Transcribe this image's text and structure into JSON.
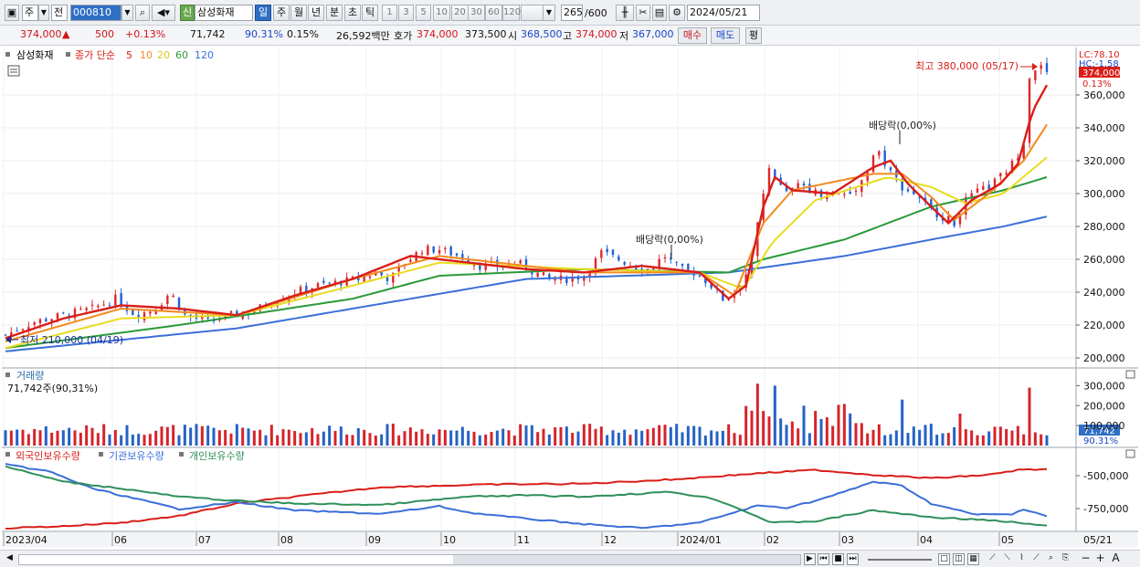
{
  "toolbar": {
    "period_prefix": "주",
    "period_prefix2": "전",
    "code": "000810",
    "new_badge": "신",
    "stock_name": "삼성화재",
    "periods": [
      "일",
      "주",
      "월",
      "년",
      "분",
      "초",
      "틱"
    ],
    "active_period": "일",
    "intervals": [
      "1",
      "3",
      "5",
      "10",
      "20",
      "30",
      "60",
      "120"
    ],
    "count": "265",
    "count_total": "/600",
    "date": "2024/05/21"
  },
  "quote": {
    "price": "374,000",
    "change_arrow": "▲",
    "change": "500",
    "change_pct": "+0.13%",
    "volume": "71,742",
    "volume_ratio": "90.31%",
    "turnover": "0.15%",
    "amount": "26,592백만",
    "ask_label": "호가",
    "ask": "374,000",
    "bid": "373,500",
    "open_label": "시",
    "open": "368,500",
    "high_label": "고",
    "high": "374,000",
    "low_label": "저",
    "low": "367,000",
    "buy_label": "매수",
    "sell_label": "매도",
    "avg_label": "평"
  },
  "price_panel": {
    "stock": "삼성화재",
    "ma_label": "종가 단순",
    "ma_periods": [
      "5",
      "10",
      "20",
      "60",
      "120"
    ],
    "ma_colors": [
      "#d91e18",
      "#f28a1c",
      "#e8dc20",
      "#2a9a3a",
      "#3a6fd8"
    ],
    "lc": "LC:78.10",
    "hc": "HC:-1.58",
    "last_price": "374,000",
    "last_pct": "0.13%",
    "y_ticks": [
      "360,000",
      "340,000",
      "320,000",
      "300,000",
      "280,000",
      "260,000",
      "240,000",
      "220,000",
      "200,000"
    ],
    "high_note": "최고 380,000 (05/17)",
    "low_note": "최저 210,000 (04/19)",
    "dividend_notes": [
      "배당락(0,00%)",
      "배당락(0,00%)"
    ]
  },
  "volume_panel": {
    "title": "거래량",
    "value": "71,742주(90,31%)",
    "y_ticks": [
      "300,000",
      "200,000",
      "100,000"
    ],
    "last": "71,742",
    "last_pct": "90.31%"
  },
  "holding_panel": {
    "series": [
      "외국인보유수량",
      "기관보유수량",
      "개인보유수량"
    ],
    "colors": [
      "#d91e18",
      "#3a6fd8",
      "#2f8f5a"
    ],
    "y_ticks": [
      "-500,000",
      "-750,000"
    ]
  },
  "x_axis": {
    "labels": [
      "2023/04",
      "06",
      "07",
      "08",
      "09",
      "10",
      "11",
      "12",
      "2024/01",
      "02",
      "03",
      "04",
      "05"
    ],
    "right_label": "05/21"
  },
  "chart_data": {
    "type": "candlestick",
    "period": "daily",
    "x_range": [
      "2023/04",
      "2024/05/21"
    ],
    "y_range": [
      200000,
      380000
    ],
    "close_path": [
      [
        0,
        214000
      ],
      [
        10,
        222000
      ],
      [
        20,
        226000
      ],
      [
        30,
        230000
      ],
      [
        38,
        236000
      ],
      [
        45,
        226000
      ],
      [
        52,
        230000
      ],
      [
        57,
        240000
      ],
      [
        62,
        226000
      ],
      [
        70,
        222000
      ],
      [
        78,
        226000
      ],
      [
        85,
        228000
      ],
      [
        92,
        234000
      ],
      [
        100,
        240000
      ],
      [
        108,
        244000
      ],
      [
        115,
        246000
      ],
      [
        122,
        248000
      ],
      [
        128,
        252000
      ],
      [
        133,
        248000
      ],
      [
        138,
        258000
      ],
      [
        144,
        266000
      ],
      [
        150,
        266000
      ],
      [
        157,
        262000
      ],
      [
        164,
        256000
      ],
      [
        170,
        256000
      ],
      [
        177,
        258000
      ],
      [
        183,
        252000
      ],
      [
        188,
        248000
      ],
      [
        194,
        248000
      ],
      [
        200,
        250000
      ],
      [
        206,
        264000
      ],
      [
        212,
        260000
      ],
      [
        217,
        256000
      ],
      [
        222,
        254000
      ],
      [
        228,
        262000
      ],
      [
        233,
        254000
      ],
      [
        238,
        252000
      ],
      [
        243,
        246000
      ],
      [
        248,
        236000
      ],
      [
        252,
        240000
      ],
      [
        257,
        254000
      ],
      [
        261,
        290000
      ],
      [
        264,
        318000
      ],
      [
        267,
        306000
      ],
      [
        270,
        300000
      ],
      [
        275,
        306000
      ],
      [
        281,
        300000
      ],
      [
        287,
        300000
      ],
      [
        292,
        300000
      ],
      [
        297,
        310000
      ],
      [
        301,
        328000
      ],
      [
        305,
        316000
      ],
      [
        310,
        304000
      ],
      [
        316,
        298000
      ],
      [
        320,
        290000
      ],
      [
        324,
        286000
      ],
      [
        328,
        282000
      ],
      [
        331,
        294000
      ],
      [
        335,
        300000
      ],
      [
        340,
        304000
      ],
      [
        345,
        312000
      ],
      [
        349,
        320000
      ],
      [
        352,
        332000
      ],
      [
        354,
        372000
      ],
      [
        357,
        378000
      ],
      [
        360,
        374000
      ]
    ],
    "ma_curves": {
      "MA5": [
        [
          0,
          212000
        ],
        [
          20,
          224000
        ],
        [
          40,
          232000
        ],
        [
          60,
          230000
        ],
        [
          80,
          226000
        ],
        [
          100,
          238000
        ],
        [
          120,
          248000
        ],
        [
          140,
          262000
        ],
        [
          160,
          258000
        ],
        [
          180,
          254000
        ],
        [
          200,
          252000
        ],
        [
          220,
          256000
        ],
        [
          240,
          252000
        ],
        [
          250,
          236000
        ],
        [
          256,
          244000
        ],
        [
          262,
          292000
        ],
        [
          266,
          310000
        ],
        [
          272,
          302000
        ],
        [
          286,
          300000
        ],
        [
          300,
          316000
        ],
        [
          306,
          320000
        ],
        [
          312,
          306000
        ],
        [
          320,
          292000
        ],
        [
          326,
          282000
        ],
        [
          334,
          296000
        ],
        [
          344,
          306000
        ],
        [
          350,
          318000
        ],
        [
          355,
          350000
        ],
        [
          360,
          366000
        ]
      ],
      "MA10": [
        [
          0,
          210000
        ],
        [
          40,
          230000
        ],
        [
          80,
          226000
        ],
        [
          120,
          248000
        ],
        [
          150,
          262000
        ],
        [
          200,
          252000
        ],
        [
          240,
          252000
        ],
        [
          252,
          238000
        ],
        [
          262,
          282000
        ],
        [
          272,
          302000
        ],
        [
          300,
          312000
        ],
        [
          310,
          312000
        ],
        [
          320,
          298000
        ],
        [
          328,
          284000
        ],
        [
          340,
          300000
        ],
        [
          352,
          320000
        ],
        [
          360,
          342000
        ]
      ],
      "MA20": [
        [
          0,
          206000
        ],
        [
          40,
          224000
        ],
        [
          80,
          226000
        ],
        [
          120,
          244000
        ],
        [
          150,
          258000
        ],
        [
          200,
          254000
        ],
        [
          240,
          252000
        ],
        [
          255,
          242000
        ],
        [
          265,
          270000
        ],
        [
          280,
          296000
        ],
        [
          305,
          310000
        ],
        [
          320,
          304000
        ],
        [
          332,
          294000
        ],
        [
          345,
          300000
        ],
        [
          360,
          322000
        ]
      ],
      "MA60": [
        [
          0,
          206000
        ],
        [
          60,
          220000
        ],
        [
          120,
          236000
        ],
        [
          150,
          250000
        ],
        [
          200,
          254000
        ],
        [
          250,
          252000
        ],
        [
          262,
          260000
        ],
        [
          290,
          272000
        ],
        [
          320,
          292000
        ],
        [
          345,
          302000
        ],
        [
          360,
          310000
        ]
      ],
      "MA120": [
        [
          0,
          204000
        ],
        [
          80,
          218000
        ],
        [
          140,
          236000
        ],
        [
          180,
          248000
        ],
        [
          250,
          252000
        ],
        [
          290,
          262000
        ],
        [
          320,
          272000
        ],
        [
          345,
          280000
        ],
        [
          360,
          286000
        ]
      ]
    }
  }
}
